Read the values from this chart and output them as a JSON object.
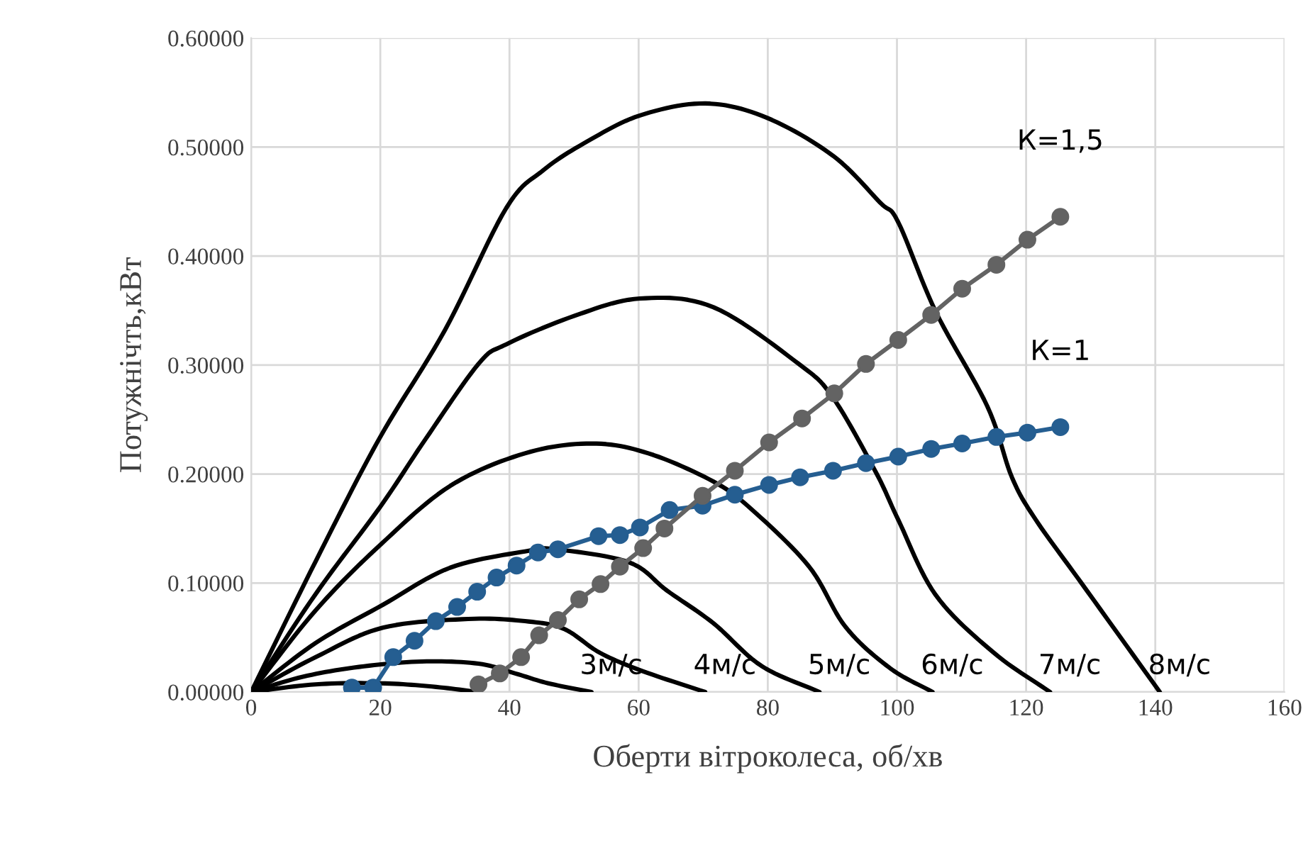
{
  "chart_data": {
    "type": "line",
    "xlabel": "Оберти вітроколеса, об/хв",
    "ylabel": "Потужнічть,кВт",
    "xlim": [
      0,
      160
    ],
    "xticks": [
      0,
      20,
      40,
      60,
      80,
      100,
      120,
      140,
      160
    ],
    "ylim": [
      0,
      0.6
    ],
    "yticks": [
      {
        "value": 0,
        "label": "0.00000"
      },
      {
        "value": 0.1,
        "label": "0.10000"
      },
      {
        "value": 0.2,
        "label": "0.20000"
      },
      {
        "value": 0.3,
        "label": "0.30000"
      },
      {
        "value": 0.4,
        "label": "0.40000"
      },
      {
        "value": 0.5,
        "label": "0.50000"
      },
      {
        "value": 0.6,
        "label": "0.60000"
      }
    ],
    "grid": true,
    "legend": false,
    "series": [
      {
        "color": "#000000",
        "marker": "none",
        "x": [
          0,
          10,
          20,
          28,
          35.2
        ],
        "values": [
          0,
          0.007,
          0.008,
          0.005,
          0
        ]
      },
      {
        "name": "3м/с",
        "color": "#000000",
        "marker": "none",
        "x": [
          0,
          8,
          16.7,
          26.4,
          35.2,
          40.9,
          46,
          52.7
        ],
        "values": [
          0,
          0.014,
          0.023,
          0.028,
          0.026,
          0.017,
          0.008,
          0
        ]
      },
      {
        "name": "4м/с",
        "color": "#000000",
        "marker": "none",
        "x": [
          0,
          10,
          20.4,
          33.6,
          42.4,
          48.4,
          54,
          60.7,
          70.3
        ],
        "values": [
          0,
          0.032,
          0.059,
          0.067,
          0.065,
          0.058,
          0.036,
          0.019,
          0
        ]
      },
      {
        "name": "5м/с",
        "color": "#000000",
        "marker": "none",
        "x": [
          0,
          10,
          20.4,
          30.8,
          42.4,
          47,
          58.5,
          64.4,
          71.6,
          79,
          88
        ],
        "values": [
          0,
          0.045,
          0.08,
          0.114,
          0.129,
          0.131,
          0.119,
          0.093,
          0.063,
          0.024,
          0
        ]
      },
      {
        "name": "6м/с",
        "color": "#000000",
        "marker": "none",
        "x": [
          0,
          10,
          20,
          30.8,
          42.4,
          52.7,
          61.5,
          71.6,
          77.6,
          86.4,
          92,
          98.9,
          105.5
        ],
        "values": [
          0,
          0.075,
          0.135,
          0.189,
          0.219,
          0.228,
          0.219,
          0.193,
          0.167,
          0.115,
          0.06,
          0.022,
          0
        ]
      },
      {
        "name": "7м/с",
        "color": "#000000",
        "marker": "none",
        "x": [
          0,
          10,
          20,
          27,
          35.2,
          39.5,
          50,
          60.2,
          71.6,
          84.8,
          90.1,
          96.7,
          100.2,
          106,
          115,
          123.7
        ],
        "values": [
          0,
          0.09,
          0.17,
          0.232,
          0.301,
          0.319,
          0.345,
          0.361,
          0.353,
          0.301,
          0.27,
          0.202,
          0.158,
          0.089,
          0.036,
          0
        ]
      },
      {
        "name": "8м/с",
        "color": "#000000",
        "marker": "none",
        "x": [
          0,
          10,
          19.8,
          30,
          39.5,
          45.3,
          52,
          60.2,
          70.3,
          79.8,
          90.1,
          97.4,
          100.2,
          106,
          114,
          117.8,
          121.5,
          128.8,
          140.7
        ],
        "values": [
          0,
          0.12,
          0.232,
          0.332,
          0.444,
          0.479,
          0.505,
          0.529,
          0.54,
          0.527,
          0.492,
          0.449,
          0.431,
          0.349,
          0.262,
          0.197,
          0.158,
          0.098,
          0
        ]
      },
      {
        "name": "К=1",
        "color": "#255e91",
        "marker": "circle",
        "x": [
          15.6,
          18.9,
          22,
          25.3,
          28.6,
          31.9,
          35,
          38,
          41.1,
          44.4,
          47.5,
          53.8,
          57.1,
          60.2,
          64.8,
          69.9,
          74.9,
          80.2,
          85,
          90.1,
          95.2,
          100.2,
          105.3,
          110.1,
          115.4,
          120.2,
          125.3
        ],
        "values": [
          0.004,
          0.004,
          0.032,
          0.047,
          0.065,
          0.078,
          0.092,
          0.105,
          0.116,
          0.128,
          0.131,
          0.143,
          0.144,
          0.151,
          0.167,
          0.171,
          0.181,
          0.19,
          0.197,
          0.203,
          0.21,
          0.216,
          0.223,
          0.228,
          0.234,
          0.238,
          0.243
        ]
      },
      {
        "name": "К=1,5",
        "color": "#636363",
        "marker": "circle",
        "x": [
          35.2,
          38.5,
          41.8,
          44.6,
          47.5,
          50.8,
          54.1,
          57.1,
          60.7,
          64,
          69.9,
          74.9,
          80.2,
          85.3,
          90.3,
          95.2,
          100.2,
          105.3,
          110.1,
          115.4,
          120.2,
          125.3
        ],
        "values": [
          0.007,
          0.017,
          0.032,
          0.052,
          0.066,
          0.085,
          0.099,
          0.115,
          0.132,
          0.15,
          0.18,
          0.203,
          0.229,
          0.251,
          0.274,
          0.301,
          0.323,
          0.346,
          0.37,
          0.392,
          0.415,
          0.436
        ]
      }
    ]
  }
}
